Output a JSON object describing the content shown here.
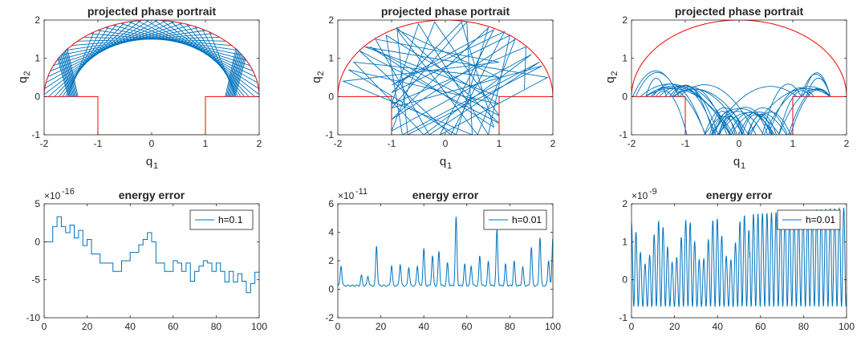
{
  "chart_data": [
    {
      "type": "line",
      "panel": "top-left",
      "title": "projected phase portrait",
      "xlabel": "q",
      "xlabel_sub": "1",
      "ylabel": "q",
      "ylabel_sub": "2",
      "xlim": [
        -2,
        2
      ],
      "ylim": [
        -1,
        2
      ],
      "xticks": [
        -2,
        -1,
        0,
        1,
        2
      ],
      "yticks": [
        -1,
        0,
        1,
        2
      ],
      "xtick_labels": [
        "-2",
        "-1",
        "0",
        "1",
        "2"
      ],
      "ytick_labels": [
        "-1",
        "0",
        "1",
        "2"
      ],
      "boundary": {
        "color": "#ff0000",
        "semicircle_radius": 2,
        "step_path": [
          [
            -2,
            0
          ],
          [
            -1,
            0
          ],
          [
            -1,
            -1
          ],
          [
            1,
            -1
          ],
          [
            1,
            0
          ],
          [
            2,
            0
          ]
        ]
      },
      "trajectory": {
        "color": "#0072bd",
        "pattern": "regular chords tangent to inner caustic",
        "caustic_radius": 1.5,
        "floor": 0,
        "n_chords": 34
      }
    },
    {
      "type": "line",
      "panel": "top-middle",
      "title": "projected phase portrait",
      "xlabel": "q",
      "xlabel_sub": "1",
      "ylabel": "q",
      "ylabel_sub": "2",
      "xlim": [
        -2,
        2
      ],
      "ylim": [
        -1,
        2
      ],
      "xticks": [
        -2,
        -1,
        0,
        1,
        2
      ],
      "yticks": [
        -1,
        0,
        1,
        2
      ],
      "xtick_labels": [
        "-2",
        "-1",
        "0",
        "1",
        "2"
      ],
      "ytick_labels": [
        "-1",
        "0",
        "1",
        "2"
      ],
      "boundary": {
        "color": "#ff0000",
        "semicircle_radius": 2,
        "step_path": [
          [
            -2,
            0
          ],
          [
            -1,
            0
          ],
          [
            -1,
            -1
          ],
          [
            1,
            -1
          ],
          [
            1,
            0
          ],
          [
            2,
            0
          ]
        ]
      },
      "trajectory": {
        "color": "#0072bd",
        "pattern": "chaotic straight-line billiard",
        "points": [
          [
            1.47,
            0.2
          ],
          [
            1.5,
            1.3
          ],
          [
            -1.0,
            -0.2
          ],
          [
            -0.5,
            1.9
          ],
          [
            0.8,
            -1.0
          ],
          [
            1.2,
            1.6
          ],
          [
            -1.0,
            0.1
          ],
          [
            0.3,
            1.95
          ],
          [
            0.9,
            -0.8
          ],
          [
            -1.4,
            1.3
          ],
          [
            1.0,
            -0.5
          ],
          [
            -0.2,
            1.95
          ],
          [
            -1.0,
            -0.9
          ],
          [
            1.6,
            1.1
          ],
          [
            -0.4,
            -1.0
          ],
          [
            -1.7,
            0.9
          ],
          [
            1.0,
            0.5
          ],
          [
            -0.9,
            1.75
          ],
          [
            0.6,
            -1.0
          ],
          [
            1.3,
            1.5
          ],
          [
            -1.0,
            -0.6
          ],
          [
            0.8,
            1.8
          ],
          [
            0.2,
            -1.0
          ],
          [
            -1.8,
            0.7
          ],
          [
            1.0,
            -0.2
          ],
          [
            -1.1,
            1.6
          ],
          [
            -0.8,
            -1.0
          ],
          [
            1.75,
            0.9
          ],
          [
            -0.3,
            -1.0
          ],
          [
            -1.3,
            1.5
          ],
          [
            1.0,
            0.9
          ],
          [
            -1.9,
            0.4
          ],
          [
            0.5,
            -1.0
          ],
          [
            0.4,
            1.95
          ],
          [
            -1.0,
            -0.3
          ],
          [
            1.8,
            0.8
          ],
          [
            -0.7,
            -1.0
          ],
          [
            -0.9,
            1.8
          ],
          [
            1.0,
            -0.7
          ],
          [
            -1.6,
            1.2
          ],
          [
            0.1,
            -1.0
          ],
          [
            1.1,
            1.7
          ],
          [
            -1.0,
            0.3
          ],
          [
            0.9,
            1.75
          ],
          [
            -0.1,
            -1.0
          ],
          [
            1.9,
            0.5
          ],
          [
            -1.5,
            1.3
          ],
          [
            1.0,
            0.0
          ]
        ]
      }
    },
    {
      "type": "line",
      "panel": "top-right",
      "title": "projected phase portrait",
      "xlabel": "q",
      "xlabel_sub": "1",
      "ylabel": "q",
      "ylabel_sub": "2",
      "xlim": [
        -2,
        2
      ],
      "ylim": [
        -1,
        2
      ],
      "xticks": [
        -2,
        -1,
        0,
        1,
        2
      ],
      "yticks": [
        -1,
        0,
        1,
        2
      ],
      "xtick_labels": [
        "-2",
        "-1",
        "0",
        "1",
        "2"
      ],
      "ytick_labels": [
        "-1",
        "0",
        "1",
        "2"
      ],
      "boundary": {
        "color": "#ff0000",
        "semicircle_radius": 2,
        "step_path": [
          [
            -2,
            0
          ],
          [
            -1,
            0
          ],
          [
            -1,
            -1
          ],
          [
            1,
            -1
          ],
          [
            1,
            0
          ],
          [
            2,
            0
          ]
        ]
      },
      "trajectory": {
        "color": "#0072bd",
        "pattern": "bouncing parabolic arcs",
        "arc_max_height": 0.75,
        "q1_range": [
          -2,
          1.7
        ]
      }
    },
    {
      "type": "line",
      "panel": "bottom-left",
      "title": "energy error",
      "exponent_label": "×10",
      "exponent_power": "-16",
      "xlim": [
        0,
        100
      ],
      "ylim": [
        -10,
        5
      ],
      "xticks": [
        0,
        20,
        40,
        60,
        80,
        100
      ],
      "yticks": [
        -10,
        -5,
        0,
        5
      ],
      "xtick_labels": [
        "0",
        "20",
        "40",
        "60",
        "80",
        "100"
      ],
      "ytick_labels": [
        "-10",
        "-5",
        "0",
        "5"
      ],
      "legend": {
        "label": "h=0.1",
        "position": "top-right"
      },
      "series": [
        {
          "name": "h=0.1",
          "color": "#0072bd",
          "style": "step",
          "x": [
            0,
            2,
            4,
            6,
            8,
            10,
            12,
            14,
            16,
            18,
            20,
            22,
            24,
            26,
            28,
            30,
            32,
            34,
            36,
            38,
            40,
            42,
            44,
            46,
            48,
            50,
            52,
            54,
            56,
            58,
            60,
            62,
            64,
            66,
            68,
            70,
            72,
            74,
            76,
            78,
            80,
            82,
            84,
            86,
            88,
            90,
            92,
            94,
            96,
            98,
            100
          ],
          "y": [
            0,
            0,
            2,
            3.3,
            2,
            1.2,
            2.2,
            0.5,
            1.5,
            -0.5,
            0.3,
            -1.6,
            -1.6,
            -2.8,
            -2.8,
            -2.8,
            -3.9,
            -3.9,
            -2.5,
            -2.5,
            -1.4,
            -1.4,
            -0.4,
            0.3,
            1.2,
            0,
            -2.8,
            -2.8,
            -3.9,
            -3.9,
            -2.5,
            -2.8,
            -3.9,
            -2.8,
            -5.2,
            -3.9,
            -3.2,
            -2.5,
            -2.8,
            -3.9,
            -2.8,
            -3.9,
            -5.3,
            -3.9,
            -5.3,
            -4.2,
            -5.2,
            -6.7,
            -5.5,
            -4.0,
            -3.8
          ]
        }
      ]
    },
    {
      "type": "line",
      "panel": "bottom-middle",
      "title": "energy error",
      "exponent_label": "×10",
      "exponent_power": "-11",
      "xlim": [
        0,
        100
      ],
      "ylim": [
        -2,
        6
      ],
      "xticks": [
        0,
        20,
        40,
        60,
        80,
        100
      ],
      "yticks": [
        -2,
        0,
        2,
        4,
        6
      ],
      "xtick_labels": [
        "0",
        "20",
        "40",
        "60",
        "80",
        "100"
      ],
      "ytick_labels": [
        "-2",
        "0",
        "2",
        "4",
        "6"
      ],
      "legend": {
        "label": "h=0.01",
        "position": "top-right"
      },
      "series": [
        {
          "name": "h=0.01",
          "color": "#0072bd",
          "style": "peaks",
          "peaks": [
            [
              1.5,
              1.6
            ],
            [
              11,
              0.9
            ],
            [
              14,
              0.9
            ],
            [
              18,
              3.0
            ],
            [
              25,
              1.6
            ],
            [
              29,
              1.7
            ],
            [
              33,
              1.5
            ],
            [
              37,
              1.6
            ],
            [
              40,
              2.8
            ],
            [
              44,
              2.3
            ],
            [
              47,
              2.6
            ],
            [
              51,
              1.8
            ],
            [
              55,
              5.0
            ],
            [
              59,
              1.7
            ],
            [
              62,
              1.6
            ],
            [
              66,
              2.3
            ],
            [
              70,
              1.9
            ],
            [
              74,
              4.1
            ],
            [
              78,
              1.7
            ],
            [
              82,
              1.9
            ],
            [
              86,
              1.5
            ],
            [
              90,
              2.9
            ],
            [
              94,
              3.6
            ],
            [
              98,
              2.0
            ],
            [
              100,
              3.6
            ]
          ],
          "baseline": 0
        }
      ]
    },
    {
      "type": "line",
      "panel": "bottom-right",
      "title": "energy error",
      "exponent_label": "×10",
      "exponent_power": "-9",
      "xlim": [
        0,
        100
      ],
      "ylim": [
        -1,
        2
      ],
      "xticks": [
        0,
        20,
        40,
        60,
        80,
        100
      ],
      "yticks": [
        -1,
        0,
        1,
        2
      ],
      "xtick_labels": [
        "0",
        "20",
        "40",
        "60",
        "80",
        "100"
      ],
      "ytick_labels": [
        "-1",
        "0",
        "1",
        "2"
      ],
      "legend": {
        "label": "h=0.01",
        "position": "top-right"
      },
      "series": [
        {
          "name": "h=0.01",
          "color": "#0072bd",
          "style": "oscillation",
          "min": -0.7,
          "max_start": 1.5,
          "max_end": 1.9,
          "period": 2.1
        }
      ]
    }
  ]
}
